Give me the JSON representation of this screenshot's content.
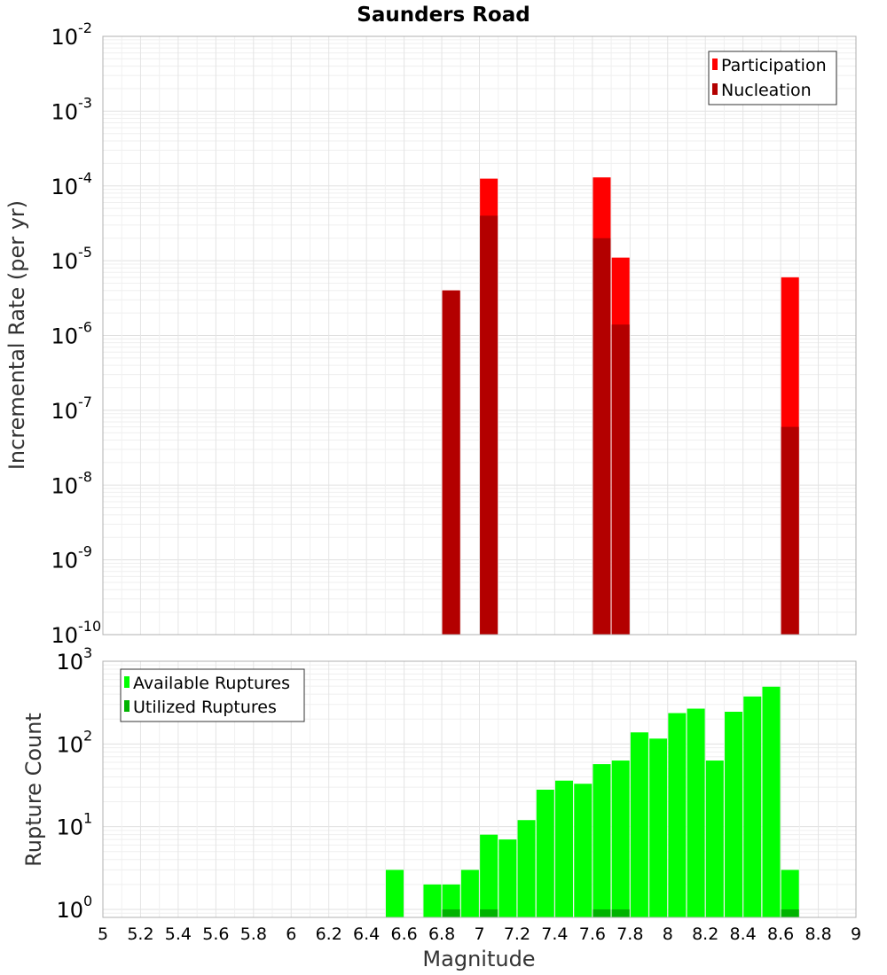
{
  "chart_data": [
    {
      "type": "bar",
      "title": "Saunders Road",
      "ylabel": "Incremental Rate (per yr)",
      "xlabel": "",
      "yscale": "log",
      "ylim": [
        1e-10,
        0.01
      ],
      "xlim": [
        5,
        9
      ],
      "grid": true,
      "legend_placement": "top-right",
      "y_ticks": [
        {
          "base": "10",
          "exp": "-10"
        },
        {
          "base": "10",
          "exp": "-9"
        },
        {
          "base": "10",
          "exp": "-8"
        },
        {
          "base": "10",
          "exp": "-7"
        },
        {
          "base": "10",
          "exp": "-6"
        },
        {
          "base": "10",
          "exp": "-5"
        },
        {
          "base": "10",
          "exp": "-4"
        },
        {
          "base": "10",
          "exp": "-3"
        },
        {
          "base": "10",
          "exp": "-2"
        }
      ],
      "series": [
        {
          "name": "Participation",
          "color": "#ff0000",
          "points": [
            {
              "x": 6.85,
              "y": 4e-06
            },
            {
              "x": 7.05,
              "y": 0.000125
            },
            {
              "x": 7.65,
              "y": 0.00013
            },
            {
              "x": 7.75,
              "y": 1.1e-05
            },
            {
              "x": 8.65,
              "y": 6e-06
            }
          ]
        },
        {
          "name": "Nucleation",
          "color": "#b30000",
          "points": [
            {
              "x": 6.85,
              "y": 4e-06
            },
            {
              "x": 7.05,
              "y": 4e-05
            },
            {
              "x": 7.65,
              "y": 2e-05
            },
            {
              "x": 7.75,
              "y": 1.4e-06
            },
            {
              "x": 8.65,
              "y": 6e-08
            }
          ]
        }
      ]
    },
    {
      "type": "bar",
      "title": "",
      "xlabel": "Magnitude",
      "ylabel": "Rupture Count",
      "yscale": "log",
      "ylim": [
        0.8,
        1000
      ],
      "xlim": [
        5,
        9
      ],
      "grid": true,
      "legend_placement": "top-left",
      "x_ticks": [
        "5",
        "5.2",
        "5.4",
        "5.6",
        "5.8",
        "6",
        "6.2",
        "6.4",
        "6.6",
        "6.8",
        "7",
        "7.2",
        "7.4",
        "7.6",
        "7.8",
        "8",
        "8.2",
        "8.4",
        "8.6",
        "8.8",
        "9"
      ],
      "y_ticks": [
        {
          "base": "10",
          "exp": "0"
        },
        {
          "base": "10",
          "exp": "1"
        },
        {
          "base": "10",
          "exp": "2"
        },
        {
          "base": "10",
          "exp": "3"
        }
      ],
      "series": [
        {
          "name": "Available Ruptures",
          "color": "#00ff00",
          "points": [
            {
              "x": 6.55,
              "y": 3
            },
            {
              "x": 6.75,
              "y": 2
            },
            {
              "x": 6.85,
              "y": 2
            },
            {
              "x": 6.95,
              "y": 3
            },
            {
              "x": 7.05,
              "y": 8
            },
            {
              "x": 7.15,
              "y": 7
            },
            {
              "x": 7.25,
              "y": 12
            },
            {
              "x": 7.35,
              "y": 28
            },
            {
              "x": 7.45,
              "y": 36
            },
            {
              "x": 7.55,
              "y": 33
            },
            {
              "x": 7.65,
              "y": 57
            },
            {
              "x": 7.75,
              "y": 63
            },
            {
              "x": 7.85,
              "y": 138
            },
            {
              "x": 7.95,
              "y": 116
            },
            {
              "x": 8.05,
              "y": 236
            },
            {
              "x": 8.15,
              "y": 267
            },
            {
              "x": 8.25,
              "y": 63
            },
            {
              "x": 8.35,
              "y": 245
            },
            {
              "x": 8.45,
              "y": 375
            },
            {
              "x": 8.55,
              "y": 492
            },
            {
              "x": 8.65,
              "y": 3
            }
          ]
        },
        {
          "name": "Utilized Ruptures",
          "color": "#00b300",
          "points": [
            {
              "x": 6.85,
              "y": 1
            },
            {
              "x": 7.05,
              "y": 1
            },
            {
              "x": 7.65,
              "y": 1
            },
            {
              "x": 7.75,
              "y": 1
            },
            {
              "x": 8.65,
              "y": 1
            }
          ]
        }
      ]
    }
  ]
}
